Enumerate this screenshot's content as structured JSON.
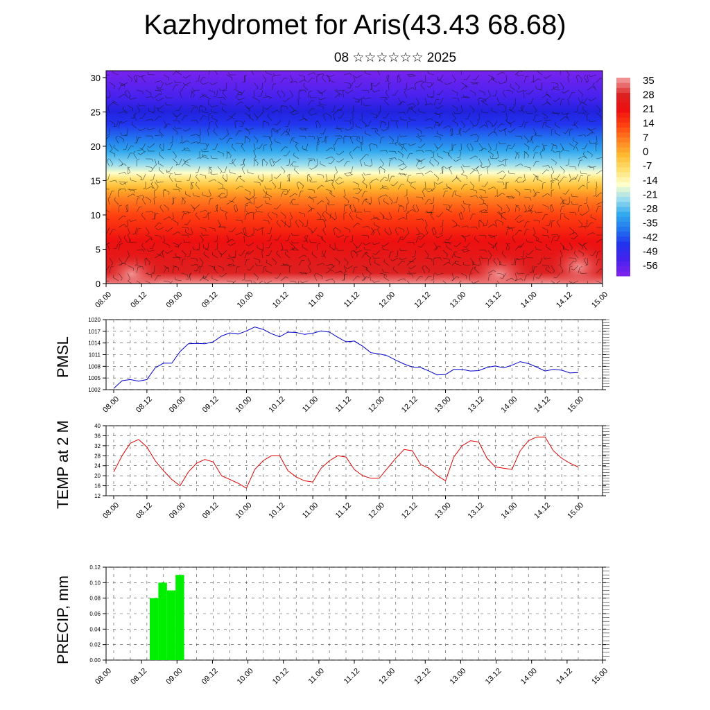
{
  "header": {
    "title": "Kazhydromet for Aris(43.43 68.68)",
    "subtitle": "08 ☆☆☆☆☆☆ 2025"
  },
  "time_labels": [
    "08.00",
    "08.12",
    "09.00",
    "09.12",
    "10.00",
    "10.12",
    "11.00",
    "11.12",
    "12.00",
    "12.12",
    "13.00",
    "13.12",
    "14.00",
    "14.12",
    "15.00"
  ],
  "chart_data": [
    {
      "type": "heatmap",
      "title": "",
      "xlabel": "",
      "ylabel": "",
      "ylim": [
        0,
        31
      ],
      "yticks": [
        "0",
        "5",
        "10",
        "15",
        "20",
        "25",
        "30"
      ],
      "colorbar_labels": [
        "35",
        "28",
        "21",
        "14",
        "7",
        "0",
        "-7",
        "-14",
        "-21",
        "-28",
        "-35",
        "-42",
        "-49",
        "-56"
      ],
      "colorscale": [
        "#7a22ee",
        "#4422ee",
        "#2233ee",
        "#2277ee",
        "#33aaee",
        "#99ddee",
        "#ffffcc",
        "#ffe070",
        "#ffb830",
        "#ff8020",
        "#ff4010",
        "#ee1010",
        "#dd2020",
        "#f09090"
      ],
      "overlay": "wind barbs"
    },
    {
      "type": "line",
      "ylabel": "PMSL",
      "ylim": [
        1002,
        1020
      ],
      "yticks": [
        "1002",
        "1005",
        "1008",
        "1011",
        "1014",
        "1017",
        "1020"
      ],
      "series": [
        {
          "color": "#0000cc",
          "values": [
            1002.3,
            1004.3,
            1004.6,
            1004.2,
            1004.6,
            1007.6,
            1008.8,
            1008.8,
            1011.8,
            1013.8,
            1013.9,
            1013.8,
            1014.3,
            1015.8,
            1016.6,
            1016.3,
            1017.1,
            1018.1,
            1017.5,
            1016.4,
            1015.6,
            1016.8,
            1016.7,
            1016.2,
            1016.5,
            1017.1,
            1016.8,
            1015.5,
            1014.3,
            1014.5,
            1013.2,
            1011.5,
            1011.2,
            1010.7,
            1009.6,
            1008.6,
            1007.8,
            1007.7,
            1006.8,
            1005.8,
            1005.9,
            1007.2,
            1007.2,
            1006.8,
            1006.9,
            1007.7,
            1008.1,
            1007.6,
            1008.3,
            1009.2,
            1008.7,
            1007.8,
            1006.8,
            1007.2,
            1007.0,
            1006.3,
            1006.4
          ]
        }
      ]
    },
    {
      "type": "line",
      "ylabel": "TEMP at 2 M",
      "ylim": [
        12,
        40
      ],
      "yticks": [
        "12",
        "16",
        "20",
        "24",
        "28",
        "32",
        "36",
        "40"
      ],
      "series": [
        {
          "color": "#dd0000",
          "values": [
            21.5,
            28,
            33,
            34.5,
            31.5,
            26,
            22,
            18.5,
            16,
            21.5,
            25,
            26.5,
            25.5,
            20,
            18.5,
            17,
            15,
            22.5,
            26,
            28,
            28,
            22,
            19.5,
            18,
            17.5,
            23,
            26,
            28,
            27.5,
            22.5,
            20,
            19,
            19,
            23,
            27,
            30.5,
            30,
            24.5,
            23,
            20,
            18,
            27.5,
            32,
            34,
            33.5,
            27,
            23.5,
            23,
            22.5,
            30,
            34,
            35.5,
            35.5,
            30,
            27,
            25,
            23.5
          ]
        }
      ]
    },
    {
      "type": "bar",
      "ylabel": "PRECIP, mm",
      "ylim": [
        0,
        0.12
      ],
      "yticks": [
        "0.00",
        "0.02",
        "0.04",
        "0.06",
        "0.08",
        "0.10",
        "0.12"
      ],
      "color": "#00ee00",
      "bars": [
        {
          "start": 5,
          "value": 0.08
        },
        {
          "start": 6,
          "value": 0.1
        },
        {
          "start": 7,
          "value": 0.09
        },
        {
          "start": 8,
          "value": 0.11
        }
      ]
    }
  ]
}
